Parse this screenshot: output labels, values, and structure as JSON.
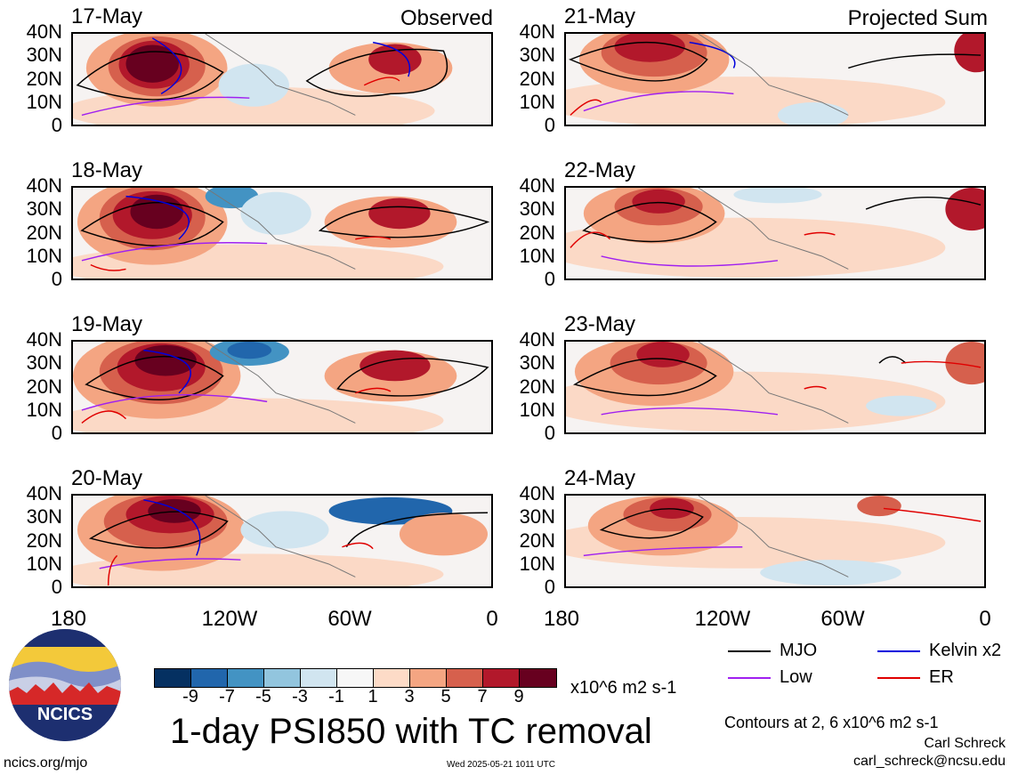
{
  "panels_left": [
    {
      "date": "17-May",
      "corner": "Observed"
    },
    {
      "date": "18-May",
      "corner": ""
    },
    {
      "date": "19-May",
      "corner": ""
    },
    {
      "date": "20-May",
      "corner": ""
    }
  ],
  "panels_right": [
    {
      "date": "21-May",
      "corner": "Projected Sum"
    },
    {
      "date": "22-May",
      "corner": ""
    },
    {
      "date": "23-May",
      "corner": ""
    },
    {
      "date": "24-May",
      "corner": ""
    }
  ],
  "y_ticks": [
    "40N",
    "30N",
    "20N",
    "10N",
    "0"
  ],
  "x_ticks": [
    "180",
    "120W",
    "60W",
    "0"
  ],
  "colorbar": {
    "colors": [
      "#053061",
      "#2166ac",
      "#4393c3",
      "#92c5de",
      "#d1e5f0",
      "#f7f7f7",
      "#fddbc7",
      "#f4a582",
      "#d6604d",
      "#b2182b",
      "#67001f"
    ],
    "labels": [
      "-9",
      "-7",
      "-5",
      "-3",
      "-1",
      "1",
      "3",
      "5",
      "7",
      "9"
    ],
    "units": "x10^6 m2 s-1"
  },
  "title": "1-day PSI850 with TC removal",
  "legend": [
    {
      "label": "MJO",
      "color": "#000000"
    },
    {
      "label": "Kelvin x2",
      "color": "#0000dd"
    },
    {
      "label": "Low",
      "color": "#a020f0"
    },
    {
      "label": "ER",
      "color": "#e00000"
    }
  ],
  "contours_note": "Contours at 2, 6 x10^6 m2 s-1",
  "author": "Carl Schreck",
  "email": "carl_schreck@ncsu.edu",
  "url": "ncics.org/mjo",
  "timestamp": "Wed 2025-05-21 1011 UTC",
  "logo_text": "NCICS"
}
